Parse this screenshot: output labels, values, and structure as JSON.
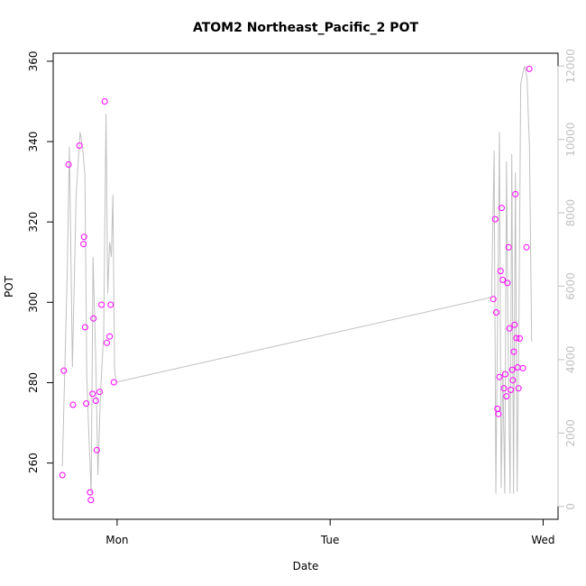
{
  "chart_data": {
    "type": "scatter",
    "title": "ATOM2 Northeast_Pacific_2 POT",
    "xlabel": "Date",
    "ylabel": "POT",
    "x_ticks": [
      "Mon",
      "Tue",
      "Wed"
    ],
    "x_range_days": [
      -0.3,
      2.07
    ],
    "y_ticks": [
      260,
      280,
      300,
      320,
      340,
      360
    ],
    "ylim": [
      246,
      362
    ],
    "y2_ticks": [
      0,
      2000,
      4000,
      6000,
      8000,
      10000,
      12000
    ],
    "y2lim": [
      -350,
      12350
    ],
    "grid": false,
    "colors": {
      "points": "#ff00ff",
      "line": "#c0c0c0",
      "right_axis": "#c0c0c0"
    },
    "series": [
      {
        "type": "points",
        "x_days": [
          -0.257,
          -0.25,
          -0.228,
          -0.207,
          -0.177,
          -0.158,
          -0.155,
          -0.15,
          -0.145,
          -0.127,
          -0.123,
          -0.115,
          -0.111,
          -0.1,
          -0.095,
          -0.082,
          -0.073,
          -0.058,
          -0.048,
          -0.035,
          -0.03,
          -0.015,
          1.766,
          1.775,
          1.78,
          1.785,
          1.79,
          1.795,
          1.8,
          1.805,
          1.81,
          1.816,
          1.822,
          1.828,
          1.832,
          1.838,
          1.842,
          1.848,
          1.855,
          1.858,
          1.862,
          1.866,
          1.87,
          1.875,
          1.88,
          1.884,
          1.89,
          1.905,
          1.922,
          1.935
        ],
        "y": [
          257.0,
          283.0,
          334.3,
          274.5,
          339.0,
          314.5,
          316.3,
          293.8,
          274.8,
          252.7,
          250.8,
          277.2,
          296.0,
          275.5,
          263.2,
          277.7,
          299.4,
          350.0,
          289.9,
          291.5,
          299.4,
          280.1,
          300.8,
          320.7,
          297.5,
          273.5,
          272.2,
          281.4,
          307.8,
          323.5,
          305.6,
          278.6,
          282.1,
          276.6,
          304.8,
          313.7,
          293.5,
          278.2,
          283.2,
          280.6,
          287.7,
          294.4,
          326.9,
          291.1,
          283.8,
          278.6,
          291.0,
          283.6,
          313.7,
          358.1
        ]
      },
      {
        "type": "line",
        "x_days": [
          -0.257,
          -0.235,
          -0.224,
          -0.21,
          -0.192,
          -0.174,
          -0.162,
          -0.151,
          -0.142,
          -0.133,
          -0.122,
          -0.113,
          -0.101,
          -0.09,
          -0.078,
          -0.063,
          -0.052,
          -0.044,
          -0.035,
          -0.027,
          -0.02,
          -0.012,
          -0.005,
          0.008,
          1.758,
          1.77,
          1.778,
          1.786,
          1.795,
          1.803,
          1.811,
          1.82,
          1.828,
          1.836,
          1.845,
          1.853,
          1.861,
          1.87,
          1.878,
          1.886,
          1.895,
          1.904,
          1.914,
          1.924,
          1.936,
          1.946
        ],
        "y2": [
          1100,
          6200,
          9800,
          3800,
          8500,
          10200,
          9800,
          9000,
          3500,
          2000,
          350,
          6800,
          4200,
          850,
          3100,
          4700,
          10700,
          5800,
          7200,
          6800,
          8500,
          3700,
          3400,
          3400,
          5700,
          9700,
          350,
          5000,
          10200,
          500,
          3700,
          350,
          9400,
          4200,
          350,
          9600,
          350,
          9100,
          400,
          4700,
          11500,
          11800,
          12000,
          11700,
          9800,
          4500
        ]
      }
    ]
  }
}
